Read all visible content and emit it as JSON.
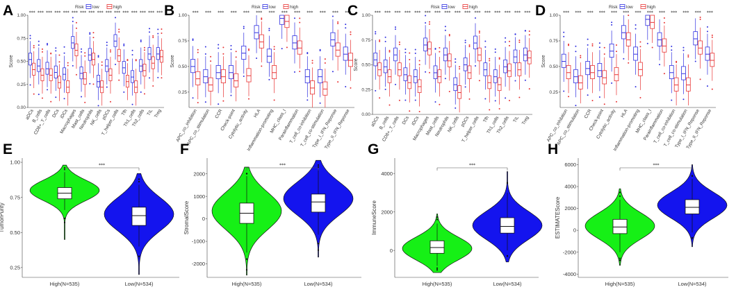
{
  "colors": {
    "low": "#2e2ee0",
    "high": "#e83232",
    "green": "#16f016",
    "blue": "#1414ee"
  },
  "legend": {
    "title": "Risk",
    "items": [
      "low",
      "high"
    ]
  },
  "chart_data": [
    {
      "panel": "A",
      "type": "box",
      "ylabel": "Score",
      "ylim": [
        0,
        1.0
      ],
      "yticks": [
        "0.00",
        "0.25",
        "0.50",
        "0.75",
        "1.00"
      ],
      "significance": "***",
      "categories": [
        "aDCs",
        "B_cells",
        "CD8+_T_cells",
        "DCs",
        "iDCs",
        "Macrophages",
        "Mast_cells",
        "Neutrophils",
        "NK_cells",
        "pDCs",
        "T_helper_cells",
        "Tfh",
        "Th1_cells",
        "Th2_cells",
        "TIL",
        "Treg"
      ],
      "series": [
        {
          "name": "low",
          "medians": [
            0.52,
            0.45,
            0.42,
            0.38,
            0.36,
            0.7,
            0.37,
            0.57,
            0.28,
            0.45,
            0.72,
            0.43,
            0.33,
            0.45,
            0.58,
            0.58
          ]
        },
        {
          "name": "high",
          "medians": [
            0.41,
            0.35,
            0.35,
            0.27,
            0.22,
            0.62,
            0.31,
            0.52,
            0.22,
            0.35,
            0.56,
            0.28,
            0.22,
            0.4,
            0.48,
            0.55
          ]
        }
      ]
    },
    {
      "panel": "B",
      "type": "box",
      "ylabel": "Score",
      "ylim": [
        0.1,
        1.0
      ],
      "yticks": [
        "0.25",
        "0.50",
        "0.75",
        "1.00"
      ],
      "significance": "***",
      "categories": [
        "APC_co_inhibition",
        "APC_co_stimulation",
        "CCR",
        "Check-point",
        "Cytolytic_activity",
        "HLA",
        "Inflammation-promoting",
        "MHC_class_I",
        "Parainflammation",
        "T_cell_co-inhibition",
        "T_cell_co-stimulation",
        "Type_I_IFN_Reponse",
        "Type_II_IFN_Reponse"
      ],
      "series": [
        {
          "name": "low",
          "medians": [
            0.5,
            0.4,
            0.44,
            0.44,
            0.63,
            0.83,
            0.6,
            0.97,
            0.73,
            0.4,
            0.4,
            0.76,
            0.62
          ]
        },
        {
          "name": "high",
          "medians": [
            0.38,
            0.32,
            0.4,
            0.36,
            0.41,
            0.74,
            0.44,
            0.94,
            0.68,
            0.29,
            0.28,
            0.66,
            0.56
          ]
        }
      ]
    },
    {
      "panel": "C",
      "type": "box",
      "ylabel": "Score",
      "ylim": [
        0,
        1.0
      ],
      "yticks": [
        "0.00",
        "0.25",
        "0.50",
        "0.75",
        "1.00"
      ],
      "significance": "***",
      "categories": [
        "aDCs",
        "B_cells",
        "CD8+_T_cells",
        "DCs",
        "iDCs",
        "Macrophages",
        "Mast_cells",
        "Neutrophils",
        "NK_cells",
        "pDCs",
        "T_helper_cells",
        "Tfh",
        "Th1_cells",
        "Th2_cells",
        "TIL",
        "Treg"
      ],
      "series": [
        {
          "name": "low",
          "medians": [
            0.55,
            0.48,
            0.6,
            0.4,
            0.38,
            0.7,
            0.42,
            0.6,
            0.3,
            0.5,
            0.72,
            0.45,
            0.38,
            0.48,
            0.58,
            0.6
          ]
        },
        {
          "name": "high",
          "medians": [
            0.45,
            0.38,
            0.45,
            0.32,
            0.28,
            0.66,
            0.38,
            0.54,
            0.22,
            0.42,
            0.6,
            0.32,
            0.3,
            0.44,
            0.45,
            0.57
          ]
        }
      ]
    },
    {
      "panel": "D",
      "type": "box",
      "ylabel": "Score",
      "ylim": [
        0.1,
        1.0
      ],
      "yticks": [
        "0.25",
        "0.50",
        "0.75",
        "1.00"
      ],
      "significance": "***",
      "categories": [
        "APC_co_inhibition",
        "APC_co_stimulation",
        "CCR",
        "Check-point",
        "Cytolytic_activity",
        "HLA",
        "Inflammation-promoting",
        "MHC_class_I",
        "Parainflammation",
        "T_cell_co-inhibition",
        "T_cell_co-stimulation",
        "Type_I_IFN_Reponse",
        "Type_II_IFN_Reponse"
      ],
      "series": [
        {
          "name": "low",
          "medians": [
            0.55,
            0.4,
            0.48,
            0.46,
            0.65,
            0.83,
            0.62,
            0.96,
            0.76,
            0.44,
            0.43,
            0.77,
            0.62
          ]
        },
        {
          "name": "high",
          "medians": [
            0.44,
            0.34,
            0.44,
            0.39,
            0.42,
            0.76,
            0.47,
            0.93,
            0.7,
            0.32,
            0.32,
            0.68,
            0.56
          ]
        }
      ]
    },
    {
      "panel": "E",
      "type": "violin",
      "ylabel": "TumorPurity",
      "ylim": [
        0.18,
        1.03
      ],
      "yticks": [
        0.25,
        0.5,
        0.75,
        1.0
      ],
      "ytick_labels": [
        "0.25",
        "0.50",
        "0.75",
        "1.00"
      ],
      "categories": [
        "High(N=535)",
        "Low(N=534)"
      ],
      "significance": "***",
      "series": [
        {
          "name": "High",
          "color": "green",
          "median": 0.78,
          "q1": 0.74,
          "q3": 0.82,
          "wlo": 0.66,
          "whi": 0.93,
          "min": 0.45,
          "max": 0.98,
          "mode": 0.8
        },
        {
          "name": "Low",
          "color": "blue",
          "median": 0.62,
          "q1": 0.55,
          "q3": 0.68,
          "wlo": 0.4,
          "whi": 0.84,
          "min": 0.2,
          "max": 0.92,
          "mode": 0.63
        }
      ]
    },
    {
      "panel": "F",
      "type": "violin",
      "ylabel": "StromalScore",
      "ylim": [
        -2600,
        2700
      ],
      "yticks": [
        -2000,
        -1000,
        0,
        1000,
        2000
      ],
      "ytick_labels": [
        "-2000",
        "-1000",
        "0",
        "1000",
        "2000"
      ],
      "categories": [
        "High(N=535)",
        "Low(N=534)"
      ],
      "significance": "***",
      "series": [
        {
          "name": "High",
          "color": "green",
          "median": 250,
          "q1": -200,
          "q3": 700,
          "wlo": -1500,
          "whi": 1900,
          "min": -2500,
          "max": 2300,
          "mode": 350
        },
        {
          "name": "Low",
          "color": "blue",
          "median": 750,
          "q1": 300,
          "q3": 1100,
          "wlo": -700,
          "whi": 2200,
          "min": -1700,
          "max": 2600,
          "mode": 900
        }
      ]
    },
    {
      "panel": "G",
      "type": "violin",
      "ylabel": "ImmuneScore",
      "ylim": [
        -1400,
        4800
      ],
      "yticks": [
        0,
        2000,
        4000
      ],
      "ytick_labels": [
        "0",
        "2000",
        "4000"
      ],
      "categories": [
        "High(N=535)",
        "Low(N=534)"
      ],
      "significance": "***",
      "series": [
        {
          "name": "High",
          "color": "green",
          "median": 150,
          "q1": -150,
          "q3": 500,
          "wlo": -800,
          "whi": 1400,
          "min": -1150,
          "max": 1900,
          "mode": 100
        },
        {
          "name": "Low",
          "color": "blue",
          "median": 1250,
          "q1": 900,
          "q3": 1700,
          "wlo": 0,
          "whi": 3000,
          "min": -600,
          "max": 4100,
          "mode": 1300
        }
      ]
    },
    {
      "panel": "H",
      "type": "violin",
      "ylabel": "ESTIMATEScore",
      "ylim": [
        -4300,
        6600
      ],
      "yticks": [
        -4000,
        -2000,
        0,
        2000,
        4000,
        6000
      ],
      "ytick_labels": [
        "-4000",
        "-2000",
        "0",
        "2000",
        "4000",
        "6000"
      ],
      "categories": [
        "High(N=535)",
        "Low(N=534)"
      ],
      "significance": "***",
      "series": [
        {
          "name": "High",
          "color": "green",
          "median": 300,
          "q1": -300,
          "q3": 1000,
          "wlo": -2000,
          "whi": 2800,
          "min": -3200,
          "max": 3800,
          "mode": 400
        },
        {
          "name": "Low",
          "color": "blue",
          "median": 2100,
          "q1": 1500,
          "q3": 2800,
          "wlo": -200,
          "whi": 4700,
          "min": -1500,
          "max": 6000,
          "mode": 2300
        }
      ]
    }
  ]
}
